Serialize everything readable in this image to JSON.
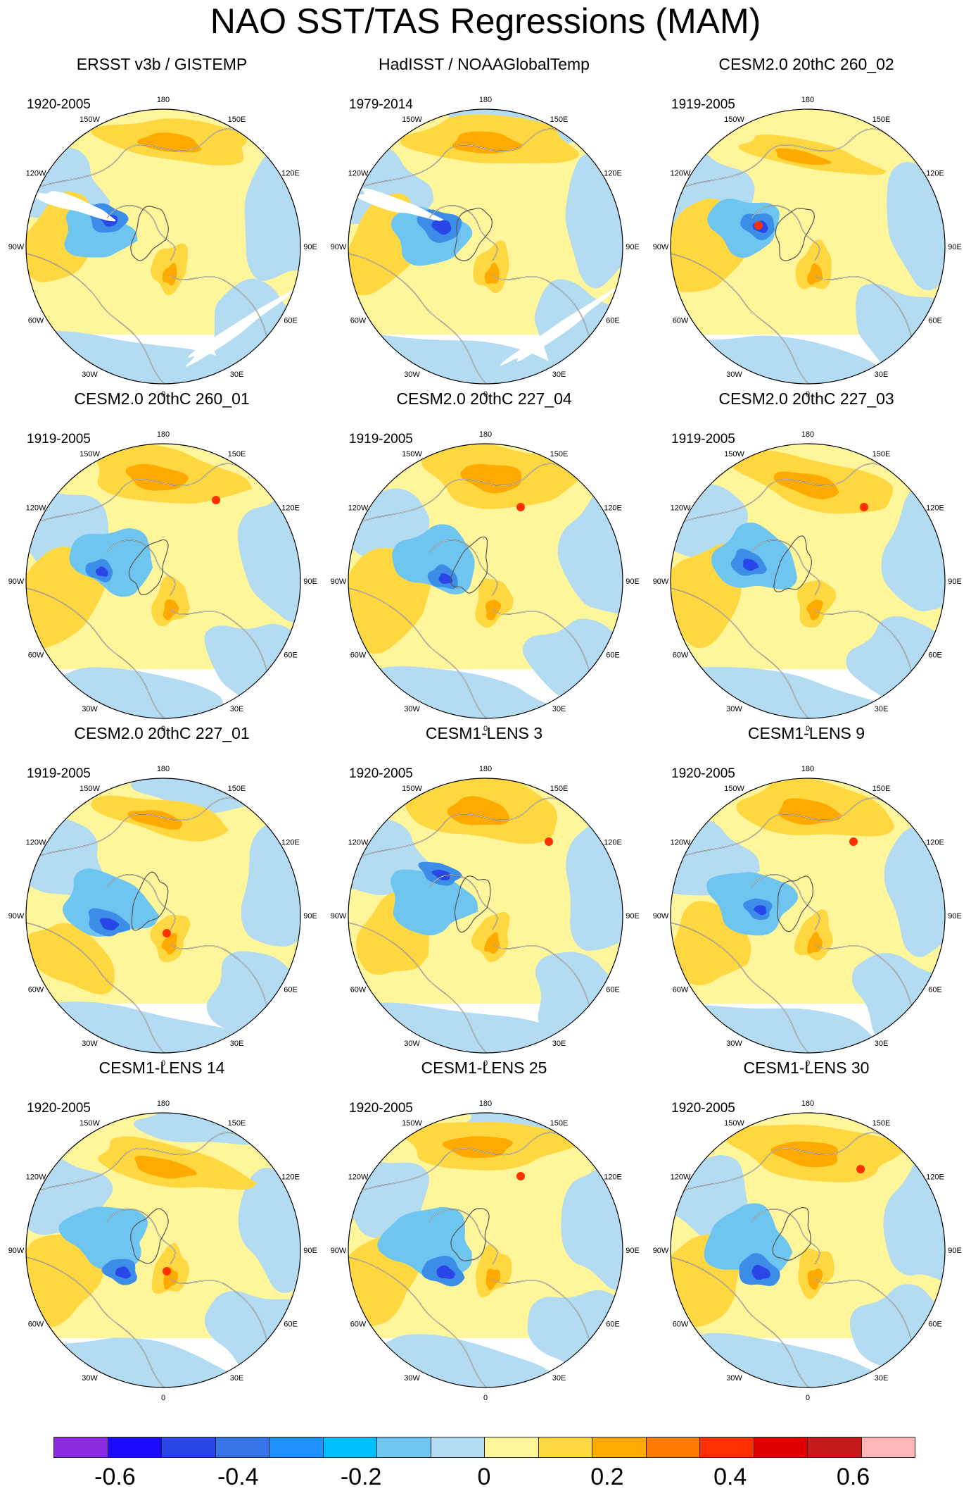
{
  "title": "NAO SST/TAS Regressions (MAM)",
  "lon_labels": [
    "180",
    "150E",
    "120E",
    "90E",
    "60E",
    "30E",
    "0",
    "30W",
    "60W",
    "90W",
    "120W",
    "150W"
  ],
  "panels": [
    {
      "title": "ERSST v3b / GISTEMP",
      "period": "1920-2005"
    },
    {
      "title": "HadISST / NOAAGlobalTemp",
      "period": "1979-2014"
    },
    {
      "title": "CESM2.0 20thC 260_02",
      "period": "1919-2005"
    },
    {
      "title": "CESM2.0 20thC 260_01",
      "period": "1919-2005"
    },
    {
      "title": "CESM2.0 20thC 227_04",
      "period": "1919-2005"
    },
    {
      "title": "CESM2.0 20thC 227_03",
      "period": "1919-2005"
    },
    {
      "title": "CESM2.0 20thC 227_01",
      "period": "1919-2005"
    },
    {
      "title": "CESM1-LENS 3",
      "period": "1920-2005"
    },
    {
      "title": "CESM1-LENS 9",
      "period": "1920-2005"
    },
    {
      "title": "CESM1-LENS 14",
      "period": "1920-2005"
    },
    {
      "title": "CESM1-LENS 25",
      "period": "1920-2005"
    },
    {
      "title": "CESM1-LENS 30",
      "period": "1920-2005"
    }
  ],
  "colorbar": {
    "colors": [
      "#8a2be2",
      "#1a0dff",
      "#2a45e8",
      "#3575e8",
      "#1e90ff",
      "#00bfff",
      "#6ec6f0",
      "#b3dcf2",
      "#fff59a",
      "#ffd740",
      "#ffaa00",
      "#ff7a00",
      "#ff3000",
      "#e00000",
      "#c41a1a",
      "#ffb6b6"
    ],
    "labels": [
      "-0.6",
      "-0.4",
      "-0.2",
      "0",
      "0.2",
      "0.4",
      "0.6"
    ],
    "label_values": [
      -0.6,
      -0.4,
      -0.2,
      0,
      0.2,
      0.4,
      0.6
    ],
    "min": -0.7,
    "max": 0.7
  },
  "map_colors": {
    "background": "#fff59a",
    "light_blue": "#b3dcf2",
    "mid_blue": "#6ec6f0",
    "blue": "#3c8de8",
    "deep_blue": "#2a45e8",
    "orange": "#ffd740",
    "dark_orange": "#ffaa00",
    "red": "#ff3000",
    "coast": "#ffffff",
    "land_edge": "#555555"
  }
}
